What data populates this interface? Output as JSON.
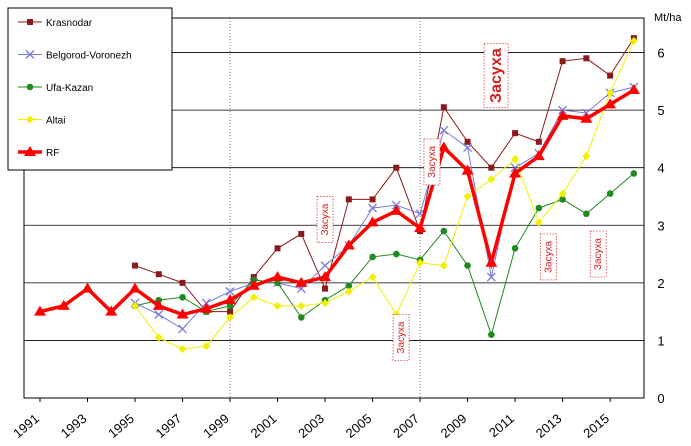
{
  "chart_data": {
    "type": "line",
    "unit_label": "Mt/ha",
    "xlim": [
      1991,
      2016
    ],
    "ylim": [
      0,
      6.6
    ],
    "y_ticks": [
      0,
      1,
      2,
      3,
      4,
      5,
      6
    ],
    "x_ticks": [
      1991,
      1993,
      1995,
      1997,
      1999,
      2001,
      2003,
      2005,
      2007,
      2009,
      2011,
      2013,
      2015
    ],
    "grid": true,
    "legend_position": "top-left",
    "colors": {
      "Krasnodar": "#8b1a1a",
      "Belgorod-Voronezh": "#7a7ad8",
      "Ufa-Kazan": "#1f8a1f",
      "Altai": "#f0f000",
      "RF": "#ff0000"
    },
    "series": [
      {
        "name": "Krasnodar",
        "marker": "square",
        "x": [
          1995,
          1996,
          1997,
          1998,
          1999,
          2000,
          2001,
          2002,
          2003,
          2004,
          2005,
          2006,
          2007,
          2008,
          2009,
          2010,
          2011,
          2012,
          2013,
          2014,
          2015,
          2016
        ],
        "y": [
          2.3,
          2.15,
          2.0,
          1.5,
          1.5,
          2.1,
          2.6,
          2.85,
          1.9,
          3.45,
          3.45,
          4.0,
          2.9,
          5.05,
          4.45,
          4.0,
          4.6,
          4.45,
          5.85,
          5.9,
          5.6,
          6.25
        ]
      },
      {
        "name": "Belgorod-Voronezh",
        "marker": "x",
        "x": [
          1995,
          1996,
          1997,
          1998,
          1999,
          2000,
          2001,
          2002,
          2003,
          2004,
          2005,
          2006,
          2007,
          2008,
          2009,
          2010,
          2011,
          2012,
          2013,
          2014,
          2015,
          2016
        ],
        "y": [
          1.65,
          1.45,
          1.2,
          1.65,
          1.85,
          2.0,
          2.0,
          1.9,
          2.3,
          2.65,
          3.3,
          3.35,
          3.2,
          4.65,
          4.35,
          2.1,
          4.0,
          4.25,
          5.0,
          4.95,
          5.3,
          5.4
        ]
      },
      {
        "name": "Ufa-Kazan",
        "marker": "circle",
        "x": [
          1995,
          1996,
          1997,
          1998,
          1999,
          2000,
          2001,
          2002,
          2003,
          2004,
          2005,
          2006,
          2007,
          2008,
          2009,
          2010,
          2011,
          2012,
          2013,
          2014,
          2015,
          2016
        ],
        "y": [
          1.6,
          1.7,
          1.75,
          1.5,
          1.6,
          2.05,
          2.0,
          1.4,
          1.7,
          1.95,
          2.45,
          2.5,
          2.4,
          2.9,
          2.3,
          1.1,
          2.6,
          3.3,
          3.45,
          3.2,
          3.55,
          3.9
        ]
      },
      {
        "name": "Altai",
        "marker": "diamond",
        "x": [
          1995,
          1996,
          1997,
          1998,
          1999,
          2000,
          2001,
          2002,
          2003,
          2004,
          2005,
          2006,
          2007,
          2008,
          2009,
          2010,
          2011,
          2012,
          2013,
          2014,
          2015,
          2016
        ],
        "y": [
          1.6,
          1.05,
          0.85,
          0.9,
          1.4,
          1.75,
          1.6,
          1.6,
          1.65,
          1.85,
          2.1,
          1.45,
          2.35,
          2.3,
          3.5,
          3.8,
          4.15,
          3.05,
          3.55,
          4.2,
          5.3,
          6.2
        ]
      },
      {
        "name": "RF",
        "marker": "triangle",
        "x": [
          1991,
          1992,
          1993,
          1994,
          1995,
          1996,
          1997,
          1998,
          1999,
          2000,
          2001,
          2002,
          2003,
          2004,
          2005,
          2006,
          2007,
          2008,
          2009,
          2010,
          2011,
          2012,
          2013,
          2014,
          2015,
          2016
        ],
        "y": [
          1.5,
          1.6,
          1.9,
          1.5,
          1.9,
          1.6,
          1.45,
          1.55,
          1.7,
          1.95,
          2.1,
          2.0,
          2.1,
          2.65,
          3.05,
          3.25,
          2.95,
          4.35,
          3.95,
          2.35,
          3.9,
          4.2,
          4.9,
          4.85,
          5.1,
          5.35
        ]
      }
    ],
    "annotations": [
      {
        "text": "Засуха",
        "x": 2003,
        "y": 3.1,
        "size": "small"
      },
      {
        "text": "Засуха",
        "x": 2006.2,
        "y": 1.05,
        "size": "small"
      },
      {
        "text": "Засуха",
        "x": 2007.5,
        "y": 4.1,
        "size": "small"
      },
      {
        "text": "Засуха",
        "x": 2010.2,
        "y": 5.6,
        "size": "big"
      },
      {
        "text": "Засуха",
        "x": 2012.4,
        "y": 2.45,
        "size": "small"
      },
      {
        "text": "Засуха",
        "x": 2014.5,
        "y": 2.5,
        "size": "small"
      }
    ]
  }
}
